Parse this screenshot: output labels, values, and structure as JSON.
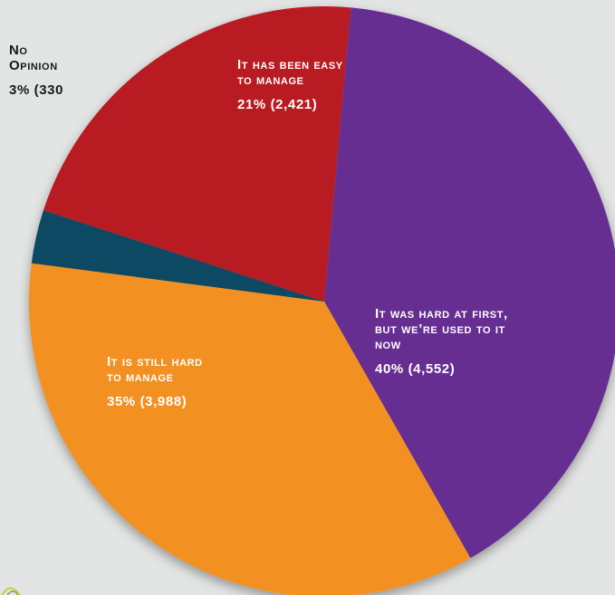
{
  "chart_data": {
    "type": "pie",
    "slices": [
      {
        "label": "It has been easy to manage",
        "value_text": "21% (2,421)",
        "percent": 21,
        "count": 2421,
        "color": "#b81a20"
      },
      {
        "label": "It was hard at first, but we’re used to it now",
        "value_text": "40% (4,552)",
        "percent": 40,
        "count": 4552,
        "color": "#662e91"
      },
      {
        "label": "It is still hard to manage",
        "value_text": "35% (3,988)",
        "percent": 35,
        "count": 3988,
        "color": "#f39020"
      },
      {
        "label": "No Opinion",
        "value_text": "3% (330",
        "percent": 3,
        "count": 330,
        "color": "#0d4862"
      }
    ],
    "label_color": "#ffffff",
    "outside_label_color": "#1a1a1a",
    "background": "#e3e4e4"
  }
}
